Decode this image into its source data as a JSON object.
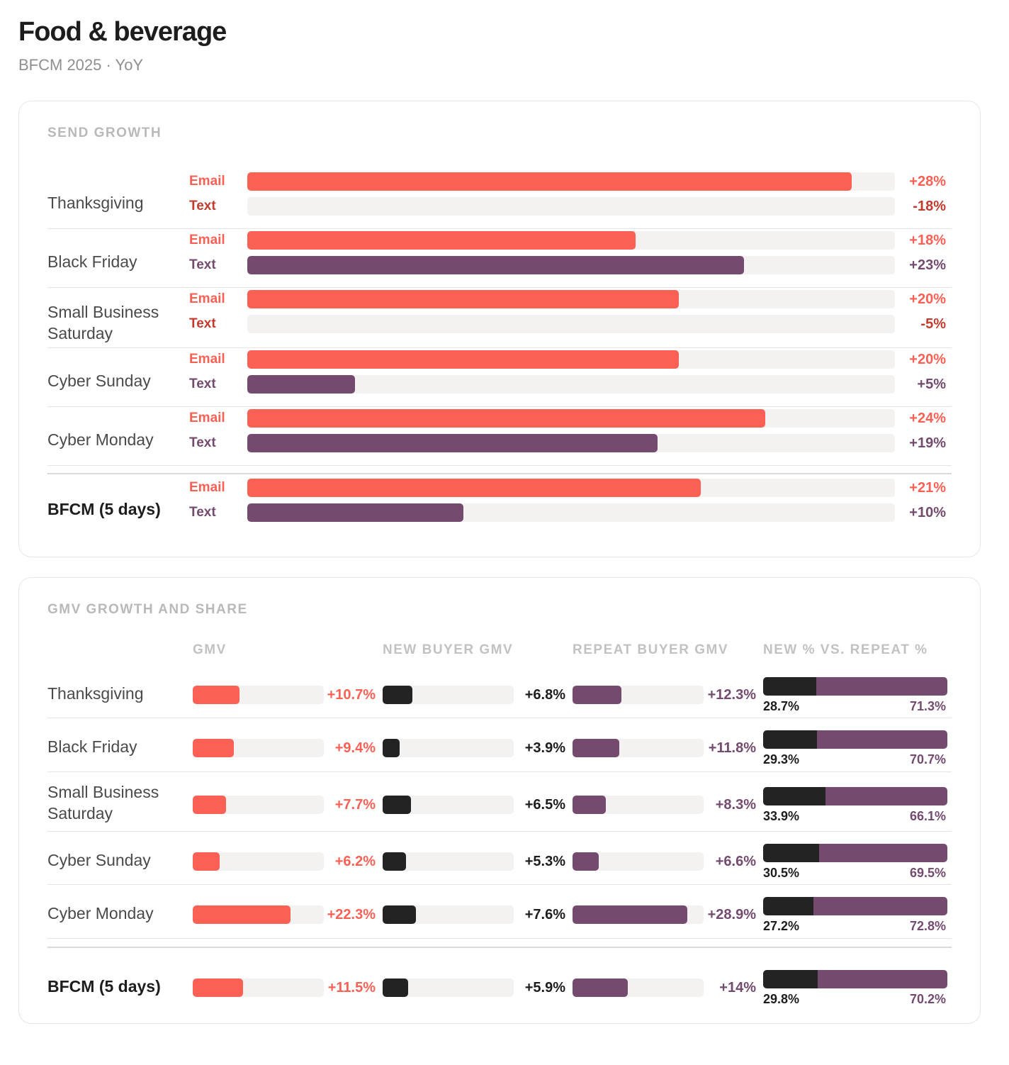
{
  "title": "Food & beverage",
  "subtitle": "BFCM 2025 · YoY",
  "colors": {
    "email": "#fb6055",
    "text_channel": "#744a6f",
    "new_buyer": "#232323",
    "negative": "#c33b2e",
    "track": "#f3f2f1"
  },
  "send": {
    "heading": "SEND GROWTH",
    "email_label": "Email",
    "text_label": "Text",
    "rows": [
      {
        "day": "Thanksgiving",
        "email": "+28%",
        "text": "-18%"
      },
      {
        "day": "Black Friday",
        "email": "+18%",
        "text": "+23%"
      },
      {
        "day": "Small Business Saturday",
        "email": "+20%",
        "text": "-5%"
      },
      {
        "day": "Cyber Sunday",
        "email": "+20%",
        "text": "+5%"
      },
      {
        "day": "Cyber Monday",
        "email": "+24%",
        "text": "+19%"
      },
      {
        "day": "BFCM (5 days)",
        "email": "+21%",
        "text": "+10%"
      }
    ]
  },
  "gmv": {
    "heading": "GMV GROWTH AND SHARE",
    "columns": [
      "GMV",
      "NEW BUYER GMV",
      "REPEAT BUYER GMV",
      "NEW % VS. REPEAT %"
    ],
    "rows": [
      {
        "day": "Thanksgiving",
        "gmv": "+10.7%",
        "new": "+6.8%",
        "repeat": "+12.3%",
        "new_pct": "28.7%",
        "repeat_pct": "71.3%"
      },
      {
        "day": "Black Friday",
        "gmv": "+9.4%",
        "new": "+3.9%",
        "repeat": "+11.8%",
        "new_pct": "29.3%",
        "repeat_pct": "70.7%"
      },
      {
        "day": "Small Business Saturday",
        "gmv": "+7.7%",
        "new": "+6.5%",
        "repeat": "+8.3%",
        "new_pct": "33.9%",
        "repeat_pct": "66.1%"
      },
      {
        "day": "Cyber Sunday",
        "gmv": "+6.2%",
        "new": "+5.3%",
        "repeat": "+6.6%",
        "new_pct": "30.5%",
        "repeat_pct": "69.5%"
      },
      {
        "day": "Cyber Monday",
        "gmv": "+22.3%",
        "new": "+7.6%",
        "repeat": "+28.9%",
        "new_pct": "27.2%",
        "repeat_pct": "72.8%"
      },
      {
        "day": "BFCM (5 days)",
        "gmv": "+11.5%",
        "new": "+5.9%",
        "repeat": "+14%",
        "new_pct": "29.8%",
        "repeat_pct": "70.2%"
      }
    ]
  },
  "chart_data": [
    {
      "type": "bar",
      "title": "SEND GROWTH",
      "categories": [
        "Thanksgiving",
        "Black Friday",
        "Small Business Saturday",
        "Cyber Sunday",
        "Cyber Monday",
        "BFCM (5 days)"
      ],
      "series": [
        {
          "name": "Email",
          "values": [
            28,
            18,
            20,
            20,
            24,
            21
          ]
        },
        {
          "name": "Text",
          "values": [
            -18,
            23,
            -5,
            5,
            19,
            10
          ]
        }
      ],
      "unit": "%"
    },
    {
      "type": "bar",
      "title": "GMV GROWTH AND SHARE",
      "categories": [
        "Thanksgiving",
        "Black Friday",
        "Small Business Saturday",
        "Cyber Sunday",
        "Cyber Monday",
        "BFCM (5 days)"
      ],
      "series": [
        {
          "name": "GMV",
          "values": [
            10.7,
            9.4,
            7.7,
            6.2,
            22.3,
            11.5
          ]
        },
        {
          "name": "NEW BUYER GMV",
          "values": [
            6.8,
            3.9,
            6.5,
            5.3,
            7.6,
            5.9
          ]
        },
        {
          "name": "REPEAT BUYER GMV",
          "values": [
            12.3,
            11.8,
            8.3,
            6.6,
            28.9,
            14
          ]
        }
      ],
      "share": {
        "new_pct": [
          28.7,
          29.3,
          33.9,
          30.5,
          27.2,
          29.8
        ],
        "repeat_pct": [
          71.3,
          70.7,
          66.1,
          69.5,
          72.8,
          70.2
        ]
      },
      "unit": "%"
    }
  ]
}
